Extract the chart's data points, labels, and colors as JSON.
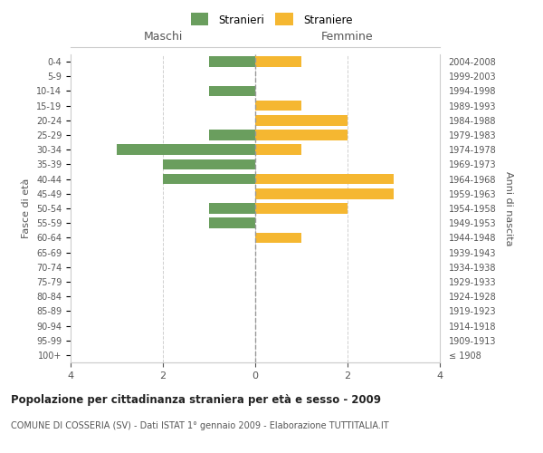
{
  "age_groups": [
    "100+",
    "95-99",
    "90-94",
    "85-89",
    "80-84",
    "75-79",
    "70-74",
    "65-69",
    "60-64",
    "55-59",
    "50-54",
    "45-49",
    "40-44",
    "35-39",
    "30-34",
    "25-29",
    "20-24",
    "15-19",
    "10-14",
    "5-9",
    "0-4"
  ],
  "birth_years": [
    "≤ 1908",
    "1909-1913",
    "1914-1918",
    "1919-1923",
    "1924-1928",
    "1929-1933",
    "1934-1938",
    "1939-1943",
    "1944-1948",
    "1949-1953",
    "1954-1958",
    "1959-1963",
    "1964-1968",
    "1969-1973",
    "1974-1978",
    "1979-1983",
    "1984-1988",
    "1989-1993",
    "1994-1998",
    "1999-2003",
    "2004-2008"
  ],
  "males": [
    0,
    0,
    0,
    0,
    0,
    0,
    0,
    0,
    0,
    1,
    1,
    0,
    2,
    2,
    3,
    1,
    0,
    0,
    1,
    0,
    1
  ],
  "females": [
    0,
    0,
    0,
    0,
    0,
    0,
    0,
    0,
    1,
    0,
    2,
    3,
    3,
    0,
    1,
    2,
    2,
    1,
    0,
    0,
    1
  ],
  "male_color": "#6a9e5e",
  "female_color": "#f5b731",
  "male_label": "Stranieri",
  "female_label": "Straniere",
  "xlim": 4,
  "title": "Popolazione per cittadinanza straniera per età e sesso - 2009",
  "subtitle": "COMUNE DI COSSERIA (SV) - Dati ISTAT 1° gennaio 2009 - Elaborazione TUTTITALIA.IT",
  "left_header": "Maschi",
  "right_header": "Femmine",
  "left_yaxis_label": "Fasce di età",
  "right_yaxis_label": "Anni di nascita",
  "background_color": "#ffffff",
  "grid_color": "#d0d0d0"
}
